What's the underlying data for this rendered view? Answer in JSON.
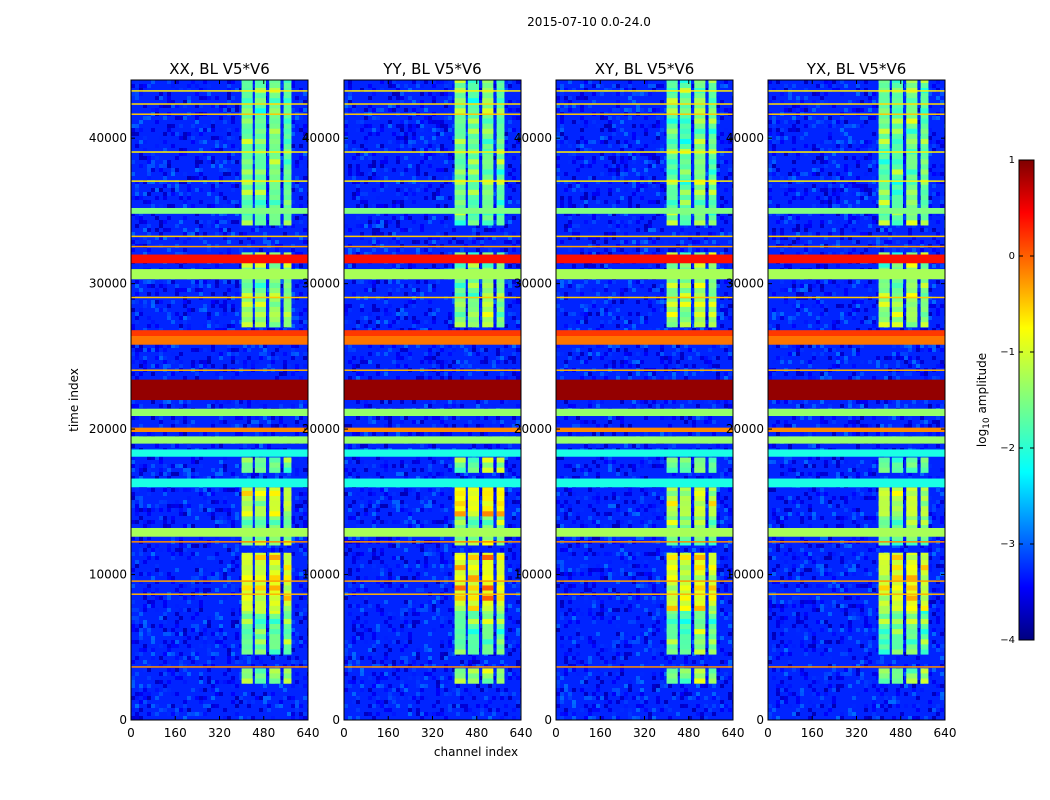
{
  "chart_data": {
    "type": "heatmap",
    "title": "2015-07-10 0.0-24.0",
    "panels": [
      {
        "title": "XX, BL V5*V6",
        "pol": "XX"
      },
      {
        "title": "YY, BL V5*V6",
        "pol": "YY"
      },
      {
        "title": "XY, BL V5*V6",
        "pol": "XY"
      },
      {
        "title": "YX, BL V5*V6",
        "pol": "YX"
      }
    ],
    "xlabel": "channel index",
    "ylabel": "time index",
    "xlim": [
      0,
      640
    ],
    "ylim": [
      0,
      44000
    ],
    "xticks": [
      "0",
      "160",
      "320",
      "480",
      "640"
    ],
    "xtick_values": [
      0,
      160,
      320,
      480,
      640
    ],
    "yticks": [
      "0",
      "10000",
      "20000",
      "30000",
      "40000"
    ],
    "ytick_values": [
      0,
      10000,
      20000,
      30000,
      40000
    ],
    "colorbar": {
      "label": "log10 amplitude",
      "label_prefix": "log",
      "label_sub": "10",
      "label_suffix": " amplitude",
      "range": [
        -4,
        1
      ],
      "ticks": [
        "1",
        "0",
        "−1",
        "−2",
        "−3",
        "−4"
      ],
      "tick_values": [
        1,
        0,
        -1,
        -2,
        -3,
        -4
      ],
      "colormap": "jet"
    },
    "background_level": -3.2,
    "signal_channel_bands": [
      [
        400,
        440,
        -1.6
      ],
      [
        448,
        488,
        -1.7
      ],
      [
        500,
        540,
        -1.4
      ],
      [
        552,
        580,
        -1.6
      ]
    ],
    "signal_time_segments": [
      [
        2500,
        3300,
        -1.4
      ],
      [
        4500,
        7500,
        -1.7
      ],
      [
        7500,
        11500,
        -0.6
      ],
      [
        12000,
        14000,
        -1.5
      ],
      [
        14000,
        16000,
        -0.8
      ],
      [
        17000,
        18000,
        -1.6
      ],
      [
        27000,
        29000,
        -1.3
      ],
      [
        29000,
        32000,
        -1.5
      ],
      [
        34000,
        44000,
        -1.7
      ]
    ],
    "broadband_rows": [
      {
        "from": 3600,
        "to": 3700,
        "level": -0.3
      },
      {
        "from": 8600,
        "to": 8700,
        "level": -0.5
      },
      {
        "from": 9500,
        "to": 9600,
        "level": -0.4
      },
      {
        "from": 12200,
        "to": 12300,
        "level": -0.3
      },
      {
        "from": 12600,
        "to": 13200,
        "level": -1.3
      },
      {
        "from": 16000,
        "to": 16600,
        "level": -2.0
      },
      {
        "from": 18100,
        "to": 18600,
        "level": -2.0
      },
      {
        "from": 19000,
        "to": 19500,
        "level": -1.4
      },
      {
        "from": 19800,
        "to": 20100,
        "level": -0.3
      },
      {
        "from": 20900,
        "to": 21400,
        "level": -1.4
      },
      {
        "from": 22000,
        "to": 23400,
        "level": 0.9
      },
      {
        "from": 24000,
        "to": 24100,
        "level": -0.5
      },
      {
        "from": 25800,
        "to": 26400,
        "level": -0.2
      },
      {
        "from": 26400,
        "to": 26800,
        "level": 0.1
      },
      {
        "from": 29000,
        "to": 29100,
        "level": -0.6
      },
      {
        "from": 30300,
        "to": 31000,
        "level": -1.3
      },
      {
        "from": 31400,
        "to": 32000,
        "level": 0.3
      },
      {
        "from": 32500,
        "to": 32600,
        "level": -0.4
      },
      {
        "from": 33200,
        "to": 33300,
        "level": -0.6
      },
      {
        "from": 34800,
        "to": 35200,
        "level": -1.5
      },
      {
        "from": 37000,
        "to": 37100,
        "level": -0.8
      },
      {
        "from": 39000,
        "to": 39100,
        "level": -0.8
      },
      {
        "from": 41600,
        "to": 41700,
        "level": -0.6
      },
      {
        "from": 42300,
        "to": 42400,
        "level": -0.7
      },
      {
        "from": 43200,
        "to": 43300,
        "level": -0.8
      }
    ]
  }
}
